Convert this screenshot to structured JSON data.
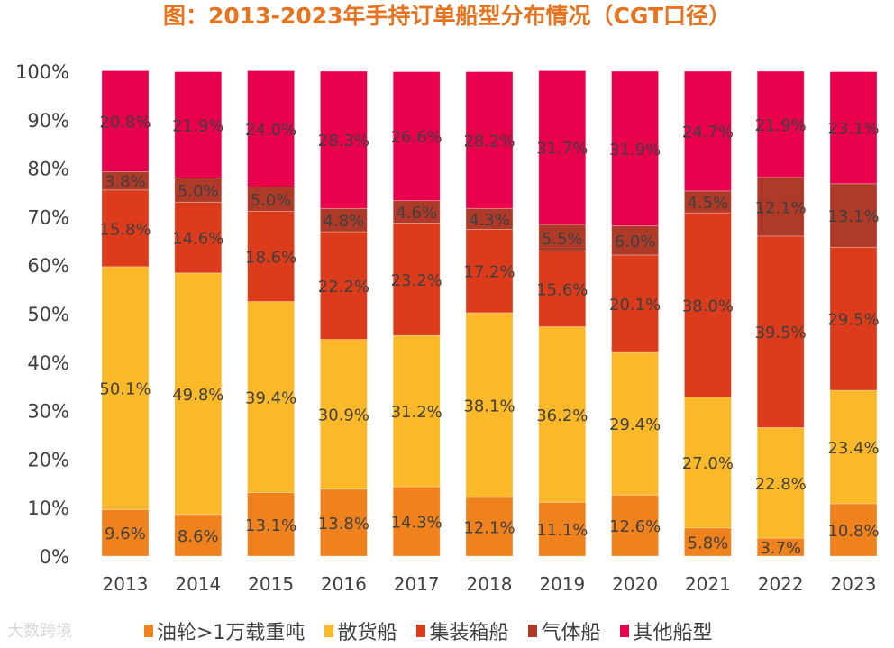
{
  "watermark": "大数跨境",
  "chart_data": {
    "type": "bar",
    "stacked": true,
    "title": "图：2013-2023年手持订单船型分布情况（CGT口径）",
    "xlabel": "",
    "ylabel": "",
    "ylim": [
      0,
      100
    ],
    "yticks": [
      "0%",
      "10%",
      "20%",
      "30%",
      "40%",
      "50%",
      "60%",
      "70%",
      "80%",
      "90%",
      "100%"
    ],
    "grid": false,
    "legend_position": "bottom",
    "categories": [
      "2013",
      "2014",
      "2015",
      "2016",
      "2017",
      "2018",
      "2019",
      "2020",
      "2021",
      "2022",
      "2023"
    ],
    "series": [
      {
        "name": "油轮>1万载重吨",
        "color": "#F0821E",
        "values": [
          9.6,
          8.6,
          13.1,
          13.8,
          14.3,
          12.1,
          11.1,
          12.6,
          5.8,
          3.7,
          10.8
        ]
      },
      {
        "name": "散货船",
        "color": "#FBB829",
        "values": [
          50.1,
          49.8,
          39.4,
          30.9,
          31.2,
          38.1,
          36.2,
          29.4,
          27.0,
          22.8,
          23.4
        ]
      },
      {
        "name": "集装箱船",
        "color": "#DC3C1B",
        "values": [
          15.8,
          14.6,
          18.6,
          22.2,
          23.2,
          17.2,
          15.6,
          20.1,
          38.0,
          39.5,
          29.5
        ]
      },
      {
        "name": "气体船",
        "color": "#B03A28",
        "values": [
          3.8,
          5.0,
          5.0,
          4.8,
          4.6,
          4.3,
          5.5,
          6.0,
          4.5,
          12.1,
          13.1
        ]
      },
      {
        "name": "其他船型",
        "color": "#E8004C",
        "values": [
          20.8,
          21.9,
          24.0,
          28.3,
          26.6,
          28.2,
          31.7,
          31.9,
          24.7,
          21.9,
          23.1
        ]
      }
    ]
  }
}
